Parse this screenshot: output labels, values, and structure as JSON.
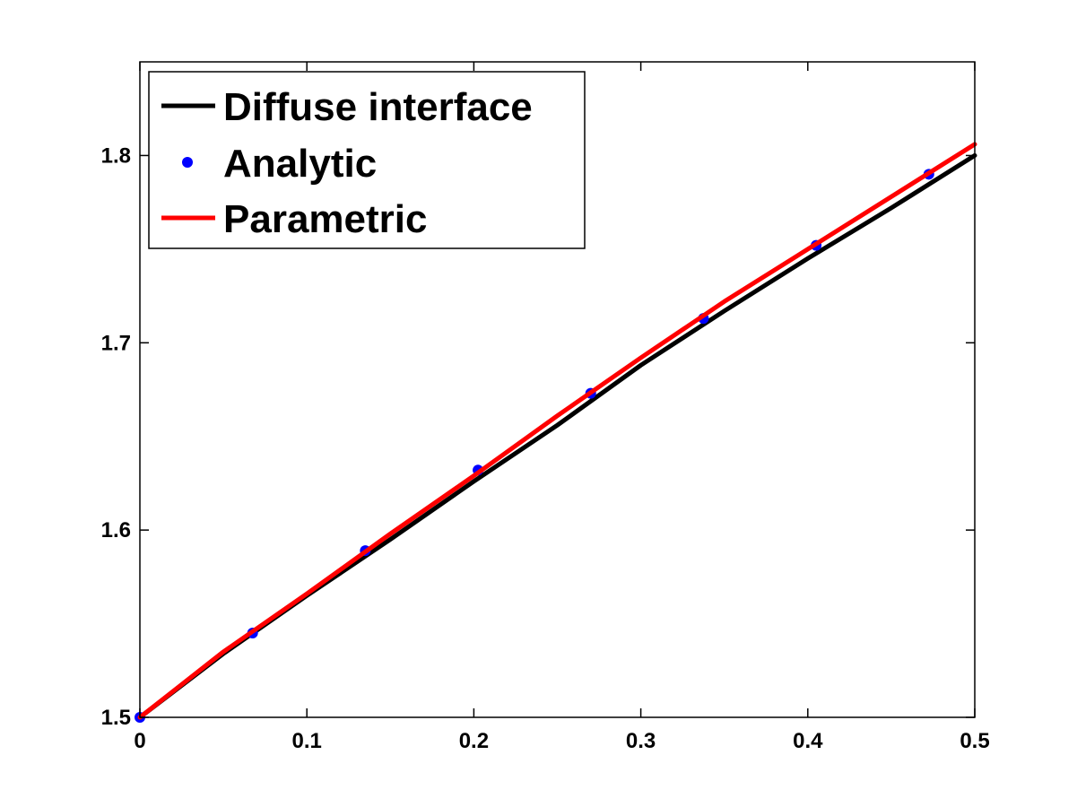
{
  "chart_data": {
    "type": "line",
    "title": "",
    "xlabel": "",
    "ylabel": "",
    "xlim": [
      0,
      0.5
    ],
    "ylim": [
      1.5,
      1.85
    ],
    "x_ticks": [
      "0",
      "0.1",
      "0.2",
      "0.3",
      "0.4",
      "0.5"
    ],
    "y_ticks": [
      "1.5",
      "1.6",
      "1.7",
      "1.8"
    ],
    "grid": false,
    "legend_position": "top-left",
    "series": [
      {
        "name": "Diffuse interface",
        "style": "line",
        "color": "#000000",
        "x": [
          0,
          0.05,
          0.1,
          0.15,
          0.2,
          0.25,
          0.3,
          0.35,
          0.4,
          0.45,
          0.5
        ],
        "y": [
          1.5,
          1.534,
          1.565,
          1.595,
          1.626,
          1.656,
          1.688,
          1.717,
          1.745,
          1.772,
          1.8
        ]
      },
      {
        "name": "Analytic",
        "style": "markers",
        "color": "#0000ff",
        "x": [
          0,
          0.0675,
          0.135,
          0.2025,
          0.27,
          0.3375,
          0.405,
          0.4725
        ],
        "y": [
          1.5,
          1.545,
          1.589,
          1.632,
          1.673,
          1.713,
          1.752,
          1.79
        ]
      },
      {
        "name": "Parametric",
        "style": "line",
        "color": "#ff0000",
        "x": [
          0,
          0.05,
          0.1,
          0.15,
          0.2,
          0.25,
          0.3,
          0.35,
          0.4,
          0.45,
          0.5
        ],
        "y": [
          1.5,
          1.535,
          1.566,
          1.598,
          1.629,
          1.661,
          1.692,
          1.722,
          1.75,
          1.778,
          1.806
        ]
      }
    ]
  }
}
